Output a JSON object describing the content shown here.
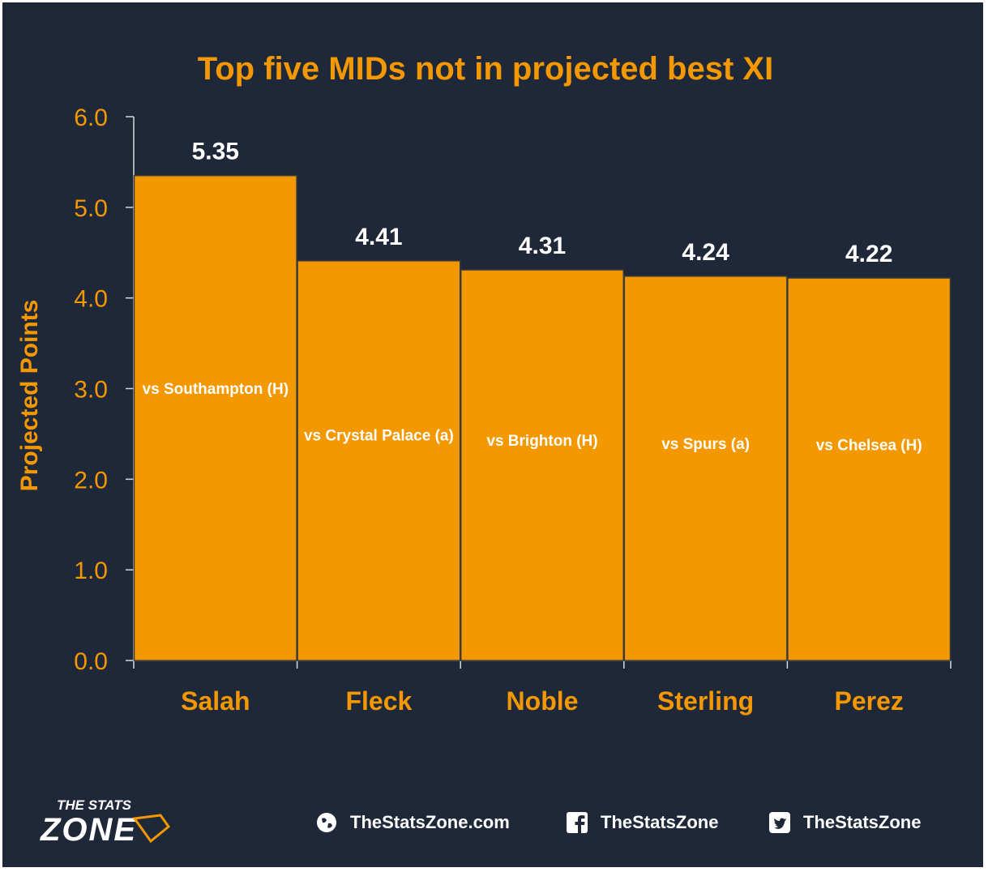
{
  "colors": {
    "background": "#1f2839",
    "accent": "#f39800",
    "bar_stroke": "#3a3a3a",
    "text_light": "#ffffff",
    "axis": "#d9d9d9"
  },
  "chart_data": {
    "type": "bar",
    "title": "Top five MIDs not in projected best XI",
    "xlabel": "",
    "ylabel": "Projected Points",
    "ylim": [
      0,
      6
    ],
    "yticks": [
      "0.0",
      "1.0",
      "2.0",
      "3.0",
      "4.0",
      "5.0",
      "6.0"
    ],
    "categories": [
      "Salah",
      "Fleck",
      "Noble",
      "Sterling",
      "Perez"
    ],
    "values": [
      5.35,
      4.41,
      4.31,
      4.24,
      4.22
    ],
    "value_labels": [
      "5.35",
      "4.41",
      "4.31",
      "4.24",
      "4.22"
    ],
    "bar_labels": [
      "vs Southampton (H)",
      "vs Crystal Palace (a)",
      "vs Brighton (H)",
      "vs Spurs (a)",
      "vs Chelsea (H)"
    ],
    "grid": false,
    "legend": "none"
  },
  "footer": {
    "logo_top": "THE STATS",
    "logo_bottom": "ZONE",
    "website": "TheStatsZone.com",
    "facebook": "TheStatsZone",
    "twitter": "TheStatsZone",
    "website_icon": "globe-icon",
    "facebook_icon": "facebook-icon",
    "twitter_icon": "twitter-icon"
  }
}
